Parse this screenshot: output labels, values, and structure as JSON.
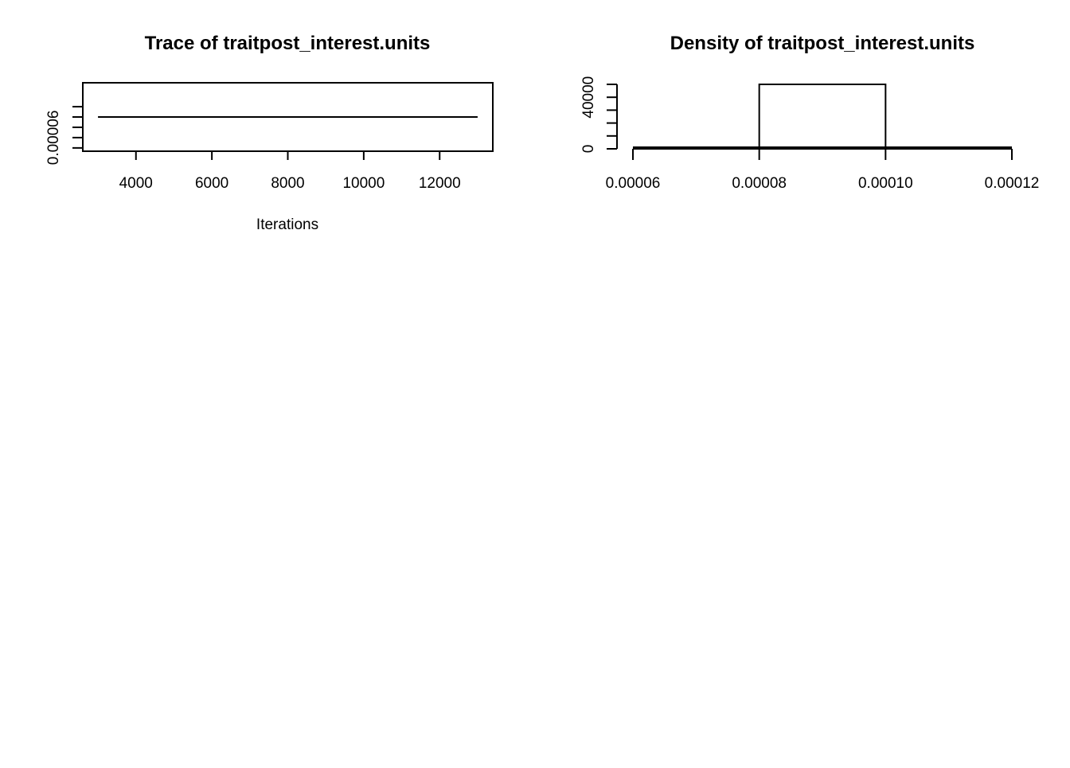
{
  "chart_data": [
    {
      "type": "line",
      "title": "Trace of traitpost_interest.units",
      "xlabel": "Iterations",
      "ylabel": "",
      "xlim": [
        2600,
        13400
      ],
      "ylim": [
        4.68e-05,
        0.0001132
      ],
      "box": true,
      "x_ticks": [
        4000,
        6000,
        8000,
        10000,
        12000
      ],
      "x_tick_labels": [
        "4000",
        "6000",
        "8000",
        "10000",
        "12000"
      ],
      "y_ticks": [
        4.999e-05,
        6e-05,
        7e-05,
        8e-05,
        9e-05
      ],
      "y_tick_labels": [
        "",
        "0.00006",
        "",
        "",
        ""
      ],
      "series": [
        {
          "x": [
            3000,
            13000
          ],
          "y": [
            8e-05,
            8e-05
          ]
        }
      ]
    },
    {
      "type": "histogram",
      "title": "Density of traitpost_interest.units",
      "xlabel": "",
      "ylabel": "",
      "xlim": [
        6e-05,
        0.00012
      ],
      "ylim": [
        0,
        50000
      ],
      "box": false,
      "x_ticks": [
        6e-05,
        8e-05,
        0.0001,
        0.00012
      ],
      "x_tick_labels": [
        "0.00006",
        "0.00008",
        "0.00010",
        "0.00012"
      ],
      "y_ticks": [
        0,
        10000,
        20000,
        30000,
        40000,
        50000
      ],
      "y_tick_labels": [
        "0",
        "",
        "",
        "",
        "40000",
        ""
      ],
      "bars": [
        {
          "x0": 8e-05,
          "x1": 0.0001,
          "value": 50000
        }
      ],
      "density_line": {
        "x": [
          6e-05,
          0.00012
        ],
        "y": [
          0,
          0
        ]
      }
    }
  ]
}
